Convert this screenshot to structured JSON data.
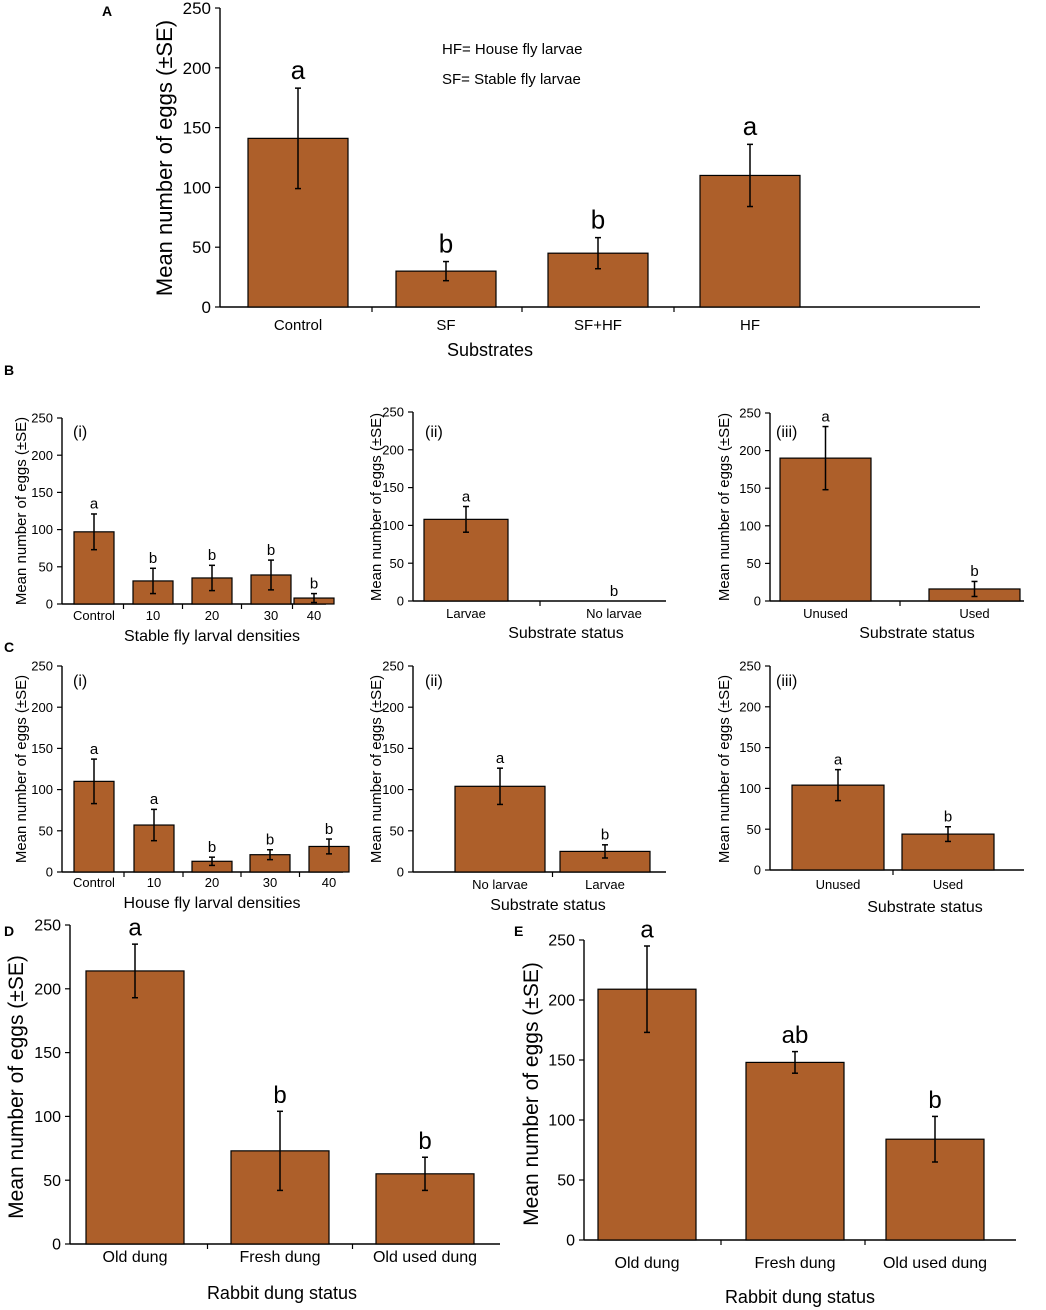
{
  "accent_color": "#ad5f2a",
  "chart_data": [
    {
      "panel": "A",
      "type": "bar",
      "categories": [
        "Control",
        "SF",
        "SF+HF",
        "HF"
      ],
      "values": [
        141,
        30,
        45,
        110
      ],
      "errors": [
        42,
        8,
        13,
        26
      ],
      "letters": [
        "a",
        "b",
        "b",
        "a"
      ],
      "xlabel": "Substrates",
      "ylabel": "Mean number of eggs (±SE)",
      "ylim": [
        0,
        250
      ],
      "yticks": [
        0,
        50,
        100,
        150,
        200,
        250
      ],
      "annotations": [
        "HF= House fly larvae",
        "SF= Stable fly larvae"
      ]
    },
    {
      "panel": "B",
      "sub": "(i)",
      "type": "bar",
      "categories": [
        "Control",
        "10",
        "20",
        "30",
        "40"
      ],
      "values": [
        97,
        31,
        35,
        39,
        8
      ],
      "errors": [
        24,
        17,
        17,
        20,
        6
      ],
      "letters": [
        "a",
        "b",
        "b",
        "b",
        "b"
      ],
      "xlabel": "Stable fly larval densities",
      "ylabel": "Mean number of eggs (±SE)",
      "ylim": [
        0,
        250
      ],
      "yticks": [
        0,
        50,
        100,
        150,
        200,
        250
      ]
    },
    {
      "panel": "B",
      "sub": "(ii)",
      "type": "bar",
      "categories": [
        "Larvae",
        "No larvae"
      ],
      "values": [
        108,
        0
      ],
      "errors": [
        17,
        0
      ],
      "letters": [
        "a",
        "b"
      ],
      "xlabel": "Substrate status",
      "ylabel": "Mean number of eggs (±SE)",
      "ylim": [
        0,
        250
      ],
      "yticks": [
        0,
        50,
        100,
        150,
        200,
        250
      ]
    },
    {
      "panel": "B",
      "sub": "(iii)",
      "type": "bar",
      "categories": [
        "Unused",
        "Used"
      ],
      "values": [
        190,
        16
      ],
      "errors": [
        42,
        10
      ],
      "letters": [
        "a",
        "b"
      ],
      "xlabel": "Substrate status",
      "ylabel": "Mean number of eggs (±SE)",
      "ylim": [
        0,
        250
      ],
      "yticks": [
        0,
        50,
        100,
        150,
        200,
        250
      ]
    },
    {
      "panel": "C",
      "sub": "(i)",
      "type": "bar",
      "categories": [
        "Control",
        "10",
        "20",
        "30",
        "40"
      ],
      "values": [
        110,
        57,
        13,
        21,
        31
      ],
      "errors": [
        27,
        19,
        5,
        6,
        9
      ],
      "letters": [
        "a",
        "a",
        "b",
        "b",
        "b"
      ],
      "xlabel": "House fly larval densities",
      "ylabel": "Mean number of eggs (±SE)",
      "ylim": [
        0,
        250
      ],
      "yticks": [
        0,
        50,
        100,
        150,
        200,
        250
      ]
    },
    {
      "panel": "C",
      "sub": "(ii)",
      "type": "bar",
      "categories": [
        "No larvae",
        "Larvae"
      ],
      "values": [
        104,
        25
      ],
      "errors": [
        22,
        8
      ],
      "letters": [
        "a",
        "b"
      ],
      "xlabel": "Substrate status",
      "ylabel": "Mean number of eggs (±SE)",
      "ylim": [
        0,
        250
      ],
      "yticks": [
        0,
        50,
        100,
        150,
        200,
        250
      ]
    },
    {
      "panel": "C",
      "sub": "(iii)",
      "type": "bar",
      "categories": [
        "Unused",
        "Used"
      ],
      "values": [
        104,
        44
      ],
      "errors": [
        19,
        9
      ],
      "letters": [
        "a",
        "b"
      ],
      "xlabel": "Substrate status",
      "ylabel": "Mean number of eggs (±SE)",
      "ylim": [
        0,
        250
      ],
      "yticks": [
        0,
        50,
        100,
        150,
        200,
        250
      ]
    },
    {
      "panel": "D",
      "type": "bar",
      "categories": [
        "Old dung",
        "Fresh dung",
        "Old used dung"
      ],
      "values": [
        214,
        73,
        55
      ],
      "errors": [
        21,
        31,
        13
      ],
      "letters": [
        "a",
        "b",
        "b"
      ],
      "xlabel": "Rabbit dung status",
      "ylabel": "Mean number of eggs (±SE)",
      "ylim": [
        0,
        250
      ],
      "yticks": [
        0,
        50,
        100,
        150,
        200,
        250
      ]
    },
    {
      "panel": "E",
      "type": "bar",
      "categories": [
        "Old dung",
        "Fresh dung",
        "Old used dung"
      ],
      "values": [
        209,
        148,
        84
      ],
      "errors": [
        36,
        9,
        19
      ],
      "letters": [
        "a",
        "ab",
        "b"
      ],
      "xlabel": "Rabbit dung status",
      "ylabel": "Mean number of eggs (±SE)",
      "ylim": [
        0,
        250
      ],
      "yticks": [
        0,
        50,
        100,
        150,
        200,
        250
      ]
    }
  ]
}
